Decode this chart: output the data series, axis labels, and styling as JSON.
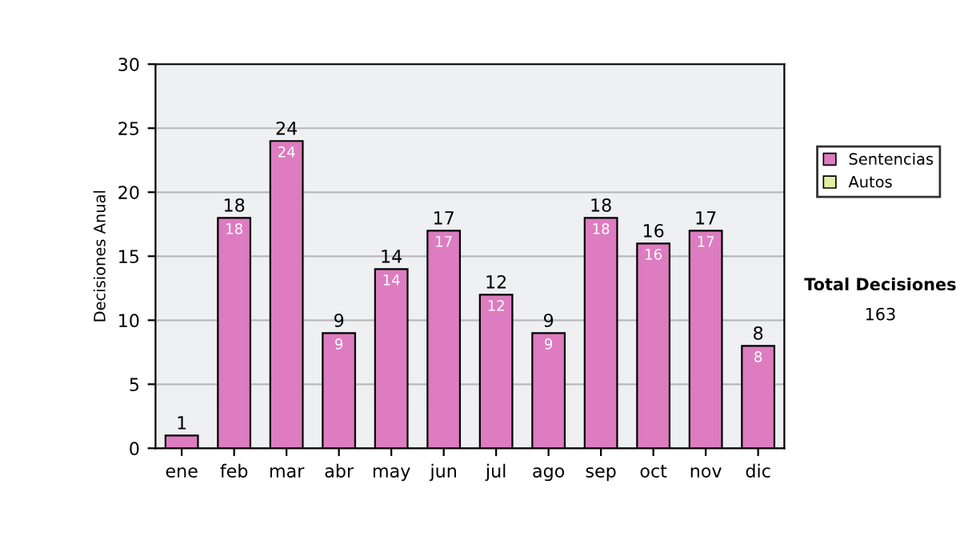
{
  "chart_data": {
    "type": "bar",
    "ylabel": "Decisiones Anual",
    "categories": [
      "ene",
      "feb",
      "mar",
      "abr",
      "may",
      "jun",
      "jul",
      "ago",
      "sep",
      "oct",
      "nov",
      "dic"
    ],
    "series": [
      {
        "name": "Sentencias",
        "color": "#dd7cc0",
        "values": [
          1,
          18,
          24,
          9,
          14,
          17,
          12,
          9,
          18,
          16,
          17,
          8
        ],
        "value_labels": [
          null,
          "18",
          "24",
          "9",
          "14",
          "17",
          "12",
          "9",
          "18",
          "16",
          "17",
          "8"
        ]
      },
      {
        "name": "Autos",
        "color": "#e6eca0",
        "values": [
          null,
          null,
          null,
          null,
          null,
          null,
          null,
          null,
          null,
          null,
          null,
          null
        ]
      }
    ],
    "stacked": true,
    "totals": [
      "1",
      "18",
      "24",
      "9",
      "14",
      "17",
      "12",
      "9",
      "18",
      "16",
      "17",
      "8"
    ],
    "ylim": [
      0,
      30
    ],
    "yticks": [
      0,
      5,
      10,
      15,
      20,
      25,
      30
    ],
    "grid": "y",
    "legend": "right",
    "annotations": [
      "Total Decisiones",
      "163"
    ]
  }
}
